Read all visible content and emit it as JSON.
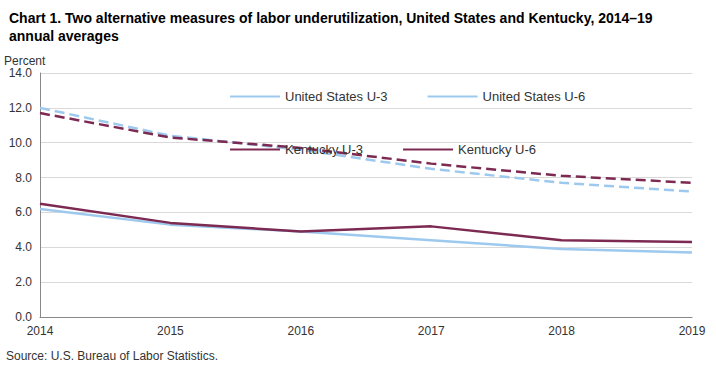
{
  "chart_data": {
    "type": "line",
    "title": "Chart 1. Two alternative measures of labor underutilization, United States and Kentucky, 2014–19 annual averages",
    "y_label": "Percent",
    "source": "Source: U.S. Bureau of Labor Statistics.",
    "categories": [
      "2014",
      "2015",
      "2016",
      "2017",
      "2018",
      "2019"
    ],
    "series": [
      {
        "name": "United States U-3",
        "color": "#9dc9ef",
        "line_style": "solid",
        "values": [
          6.2,
          5.3,
          4.9,
          4.4,
          3.9,
          3.7
        ]
      },
      {
        "name": "United States U-6",
        "color": "#9dc9ef",
        "line_style": "dashed",
        "values": [
          12.0,
          10.4,
          9.6,
          8.5,
          7.7,
          7.2
        ]
      },
      {
        "name": "Kentucky U-3",
        "color": "#7d2a52",
        "line_style": "solid",
        "values": [
          6.5,
          5.4,
          4.9,
          5.2,
          4.4,
          4.3
        ]
      },
      {
        "name": "Kentucky U-6",
        "color": "#7d2a52",
        "line_style": "dashed",
        "values": [
          11.7,
          10.3,
          9.7,
          8.8,
          8.1,
          7.7
        ]
      }
    ],
    "ylim": [
      0,
      14
    ],
    "yticks": [
      {
        "value": 0,
        "label": "0.0"
      },
      {
        "value": 2,
        "label": "2.0"
      },
      {
        "value": 4,
        "label": "4.0"
      },
      {
        "value": 6,
        "label": "6.0"
      },
      {
        "value": 8,
        "label": "8.0"
      },
      {
        "value": 10,
        "label": "10.0"
      },
      {
        "value": 12,
        "label": "12.0"
      },
      {
        "value": 14,
        "label": "14.0"
      }
    ],
    "grid": true,
    "legend": "upper right",
    "marker": "none"
  }
}
